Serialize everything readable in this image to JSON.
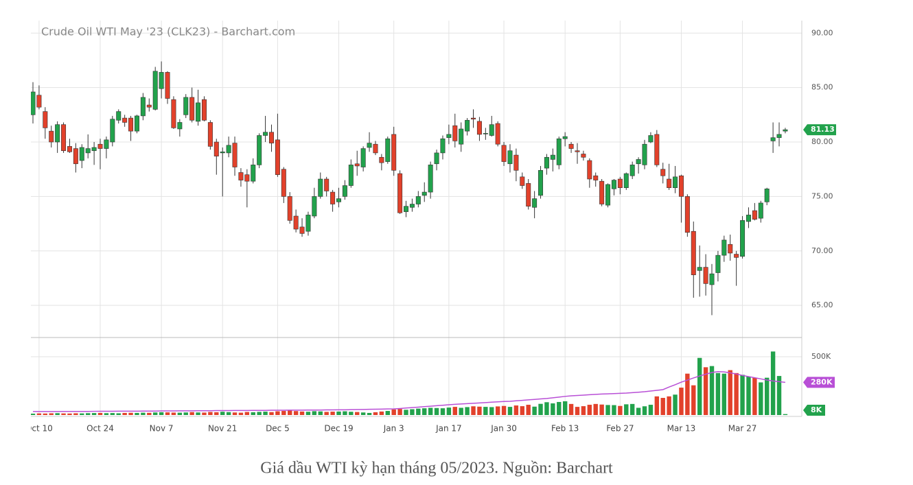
{
  "chart_data": {
    "type": "candlestick",
    "title": "Crude Oil WTI May '23 (CLK23) - Barchart.com",
    "categories": [
      null,
      "Oct 10",
      null,
      null,
      null,
      null,
      null,
      null,
      null,
      null,
      null,
      "Oct 24",
      null,
      null,
      null,
      null,
      null,
      null,
      null,
      null,
      null,
      "Nov 7",
      null,
      null,
      null,
      null,
      null,
      null,
      null,
      null,
      null,
      "Nov 21",
      null,
      null,
      null,
      null,
      null,
      null,
      null,
      null,
      "Dec 5",
      null,
      null,
      null,
      null,
      null,
      null,
      null,
      null,
      null,
      "Dec 19",
      null,
      null,
      null,
      null,
      null,
      null,
      null,
      null,
      "Jan 3",
      null,
      null,
      null,
      null,
      null,
      null,
      null,
      null,
      "Jan 17",
      null,
      null,
      null,
      null,
      null,
      null,
      null,
      null,
      "Jan 30",
      null,
      null,
      null,
      null,
      null,
      null,
      null,
      null,
      null,
      "Feb 13",
      null,
      null,
      null,
      null,
      null,
      null,
      null,
      null,
      "Feb 27",
      null,
      null,
      null,
      null,
      null,
      null,
      null,
      null,
      null,
      "Mar 13",
      null,
      null,
      null,
      null,
      null,
      null,
      null,
      null,
      null,
      "Mar 27",
      null,
      null,
      null,
      null,
      null,
      null,
      null
    ],
    "open": [
      82.5,
      84.3,
      82.8,
      81.0,
      80.0,
      81.6,
      79.6,
      79.4,
      78.3,
      79.0,
      79.2,
      79.8,
      79.4,
      80.0,
      82.0,
      82.2,
      82.2,
      81.0,
      82.4,
      83.4,
      83.0,
      84.9,
      86.4,
      83.9,
      81.2,
      82.5,
      84.1,
      81.9,
      83.9,
      81.8,
      80.0,
      79.0,
      79.0,
      79.9,
      77.2,
      77.0,
      76.4,
      77.9,
      80.6,
      80.9,
      80.2,
      77.5,
      75.0,
      73.2,
      72.2,
      71.8,
      73.2,
      75.0,
      76.6,
      75.4,
      74.5,
      75.0,
      76.0,
      78.0,
      77.7,
      79.5,
      79.8,
      78.6,
      78.2,
      80.7,
      77.1,
      73.6,
      74.0,
      74.3,
      75.1,
      75.4,
      78.0,
      79.0,
      80.4,
      81.5,
      79.8,
      81.0,
      82.2,
      81.9,
      80.8,
      80.6,
      81.7,
      79.7,
      78.0,
      78.8,
      76.8,
      76.2,
      74.0,
      75.1,
      77.6,
      78.4,
      77.9,
      80.3,
      79.8,
      79.2,
      78.9,
      78.3,
      76.9,
      76.4,
      74.2,
      75.7,
      76.6,
      75.8,
      76.9,
      78.0,
      77.9,
      80.0,
      80.7,
      77.5,
      76.6,
      75.8,
      76.9,
      75.0,
      71.8,
      68.2,
      68.5,
      66.9,
      68.0,
      69.6,
      70.6,
      69.7,
      69.5,
      72.7,
      73.7,
      73.0,
      74.5,
      80.1,
      80.4,
      81.0
    ],
    "high": [
      85.5,
      85.2,
      83.2,
      81.5,
      81.9,
      81.8,
      80.3,
      79.9,
      79.8,
      80.7,
      80.0,
      80.3,
      80.5,
      82.4,
      83.0,
      82.5,
      82.4,
      82.5,
      84.5,
      84.0,
      86.9,
      87.4,
      86.5,
      84.2,
      82.1,
      84.4,
      85.0,
      84.8,
      84.2,
      82.0,
      80.3,
      79.5,
      80.5,
      80.5,
      77.6,
      77.5,
      78.5,
      80.8,
      82.4,
      81.6,
      82.6,
      77.7,
      75.4,
      73.8,
      73.0,
      73.6,
      75.8,
      77.2,
      76.8,
      75.6,
      75.8,
      76.5,
      78.4,
      79.2,
      79.6,
      80.9,
      80.1,
      78.9,
      80.5,
      81.4,
      77.4,
      74.6,
      74.8,
      75.5,
      76.3,
      78.2,
      79.3,
      80.6,
      81.6,
      82.6,
      81.8,
      82.2,
      83.0,
      82.3,
      81.3,
      82.4,
      81.9,
      80.0,
      79.8,
      79.4,
      77.2,
      76.6,
      75.5,
      77.8,
      78.9,
      79.4,
      80.5,
      80.9,
      80.0,
      79.9,
      79.2,
      78.5,
      77.2,
      76.6,
      76.2,
      76.6,
      76.8,
      77.2,
      78.2,
      78.6,
      80.2,
      80.9,
      81.1,
      78.1,
      78.0,
      77.8,
      77.0,
      75.2,
      72.7,
      70.5,
      69.7,
      68.8,
      70.0,
      71.4,
      71.5,
      70.0,
      73.2,
      74.0,
      74.4,
      74.6,
      75.8,
      81.8,
      81.8,
      81.3
    ],
    "low": [
      81.7,
      83.0,
      80.3,
      79.5,
      79.0,
      79.0,
      79.0,
      77.2,
      77.6,
      78.5,
      77.9,
      77.5,
      78.5,
      79.6,
      81.7,
      81.4,
      80.1,
      80.8,
      82.0,
      82.8,
      82.9,
      84.0,
      83.5,
      81.2,
      80.5,
      82.2,
      81.8,
      81.5,
      81.9,
      79.3,
      77.0,
      75.0,
      78.6,
      76.9,
      75.9,
      74.0,
      76.2,
      77.6,
      80.0,
      79.1,
      76.8,
      74.4,
      72.5,
      71.7,
      71.3,
      71.4,
      73.0,
      74.8,
      75.0,
      73.6,
      74.0,
      74.7,
      75.8,
      76.9,
      77.3,
      79.1,
      78.8,
      77.4,
      78.0,
      76.9,
      73.4,
      73.1,
      73.6,
      74.0,
      74.5,
      74.8,
      77.4,
      78.4,
      79.8,
      79.5,
      79.1,
      80.6,
      81.3,
      80.1,
      80.2,
      80.5,
      79.6,
      77.8,
      77.2,
      76.4,
      75.7,
      73.8,
      73.0,
      74.8,
      77.0,
      77.3,
      77.5,
      79.6,
      79.0,
      78.0,
      78.3,
      75.8,
      75.9,
      74.1,
      74.0,
      75.1,
      75.2,
      75.6,
      76.6,
      77.1,
      77.5,
      79.9,
      77.7,
      76.2,
      75.6,
      75.3,
      72.6,
      71.3,
      65.7,
      65.8,
      65.9,
      64.1,
      67.2,
      69.0,
      69.1,
      66.8,
      69.3,
      72.1,
      72.8,
      72.6,
      74.2,
      79.0,
      79.6,
      80.8
    ],
    "close": [
      84.6,
      83.2,
      81.3,
      80.0,
      81.6,
      79.2,
      79.1,
      78.0,
      79.5,
      79.4,
      79.5,
      79.4,
      80.2,
      82.1,
      82.8,
      81.8,
      81.0,
      82.4,
      84.1,
      83.2,
      86.5,
      86.4,
      84.0,
      81.3,
      81.8,
      84.1,
      82.0,
      83.6,
      82.0,
      79.6,
      78.7,
      79.1,
      79.7,
      77.7,
      76.5,
      76.4,
      77.9,
      80.6,
      80.9,
      79.9,
      77.0,
      75.0,
      72.8,
      72.0,
      71.6,
      73.3,
      75.0,
      76.6,
      75.5,
      74.3,
      74.8,
      76.0,
      77.9,
      77.8,
      79.4,
      79.9,
      79.0,
      78.1,
      80.3,
      77.4,
      73.5,
      74.1,
      74.3,
      75.0,
      75.4,
      77.9,
      79.0,
      80.3,
      80.7,
      80.1,
      81.2,
      82.0,
      82.1,
      80.7,
      80.8,
      81.6,
      79.8,
      78.2,
      79.2,
      77.4,
      76.0,
      74.1,
      74.8,
      77.4,
      78.6,
      78.8,
      80.3,
      80.5,
      79.4,
      79.1,
      78.6,
      76.6,
      76.5,
      74.3,
      76.1,
      76.5,
      75.8,
      77.1,
      77.9,
      78.4,
      79.8,
      80.6,
      77.9,
      76.9,
      75.8,
      76.8,
      75.0,
      71.7,
      67.8,
      68.5,
      67.0,
      67.9,
      69.6,
      71.0,
      69.8,
      69.4,
      72.8,
      73.3,
      72.9,
      74.4,
      75.7,
      80.4,
      80.7,
      81.13
    ],
    "up_color": "#22a24c",
    "down_color": "#e2412b",
    "ylim": [
      62.05,
      91.15
    ],
    "yticks": [
      {
        "value": 65,
        "label": "65.00"
      },
      {
        "value": 70,
        "label": "70.00"
      },
      {
        "value": 75,
        "label": "75.00"
      },
      {
        "value": 80,
        "label": "80.00"
      },
      {
        "value": 85,
        "label": "85.00"
      },
      {
        "value": 90,
        "label": "90.00"
      }
    ],
    "series": [
      {
        "name": "Volume",
        "axis": "y2",
        "end_label": "8K",
        "color": "#22a24c",
        "values": [
          12,
          14,
          13,
          15,
          16,
          14,
          13,
          15,
          14,
          16,
          17,
          18,
          16,
          17,
          15,
          18,
          19,
          18,
          20,
          19,
          22,
          24,
          23,
          21,
          20,
          22,
          25,
          22,
          21,
          26,
          24,
          28,
          25,
          22,
          20,
          26,
          24,
          27,
          29,
          25,
          32,
          35,
          38,
          34,
          30,
          28,
          33,
          31,
          27,
          29,
          30,
          32,
          28,
          26,
          22,
          18,
          24,
          30,
          35,
          48,
          52,
          45,
          50,
          55,
          58,
          62,
          60,
          58,
          64,
          70,
          62,
          68,
          75,
          72,
          70,
          68,
          74,
          78,
          70,
          82,
          76,
          88,
          72,
          96,
          110,
          100,
          112,
          118,
          95,
          70,
          76,
          88,
          95,
          90,
          86,
          85,
          78,
          92,
          95,
          62,
          75,
          88,
          160,
          147,
          160,
          175,
          235,
          355,
          255,
          490,
          410,
          420,
          360,
          355,
          385,
          360,
          345,
          330,
          320,
          280,
          320,
          545,
          335,
          8
        ]
      },
      {
        "name": "Volume MA",
        "axis": "y2",
        "end_label": "280K",
        "color": "#b84fd6",
        "values": [
          30,
          30,
          30,
          30,
          30,
          31,
          31,
          31,
          31,
          31,
          32,
          32,
          32,
          32,
          33,
          33,
          33,
          33,
          34,
          34,
          34,
          35,
          35,
          35,
          36,
          36,
          36,
          37,
          37,
          37,
          38,
          38,
          38,
          39,
          39,
          39,
          40,
          40,
          40,
          41,
          41,
          41,
          42,
          42,
          42,
          43,
          43,
          43,
          44,
          44,
          45,
          45,
          46,
          47,
          48,
          49,
          50,
          51,
          52,
          53,
          56,
          60,
          64,
          68,
          72,
          76,
          80,
          84,
          88,
          92,
          95,
          98,
          101,
          104,
          107,
          110,
          113,
          116,
          118,
          122,
          126,
          130,
          134,
          138,
          142,
          148,
          154,
          160,
          165,
          168,
          171,
          174,
          177,
          180,
          182,
          184,
          186,
          188,
          192,
          196,
          200,
          206,
          212,
          218,
          240,
          260,
          282,
          300,
          318,
          335,
          350,
          365,
          372,
          370,
          362,
          352,
          340,
          330,
          320,
          310,
          300,
          292,
          286,
          280
        ]
      }
    ],
    "y2lim": [
      0,
      665
    ],
    "y2ticks": [
      {
        "value": 500,
        "label": "500K"
      }
    ],
    "grid": true
  },
  "caption": "Giá dầu WTI kỳ hạn tháng 05/2023. Nguồn: Barchart"
}
